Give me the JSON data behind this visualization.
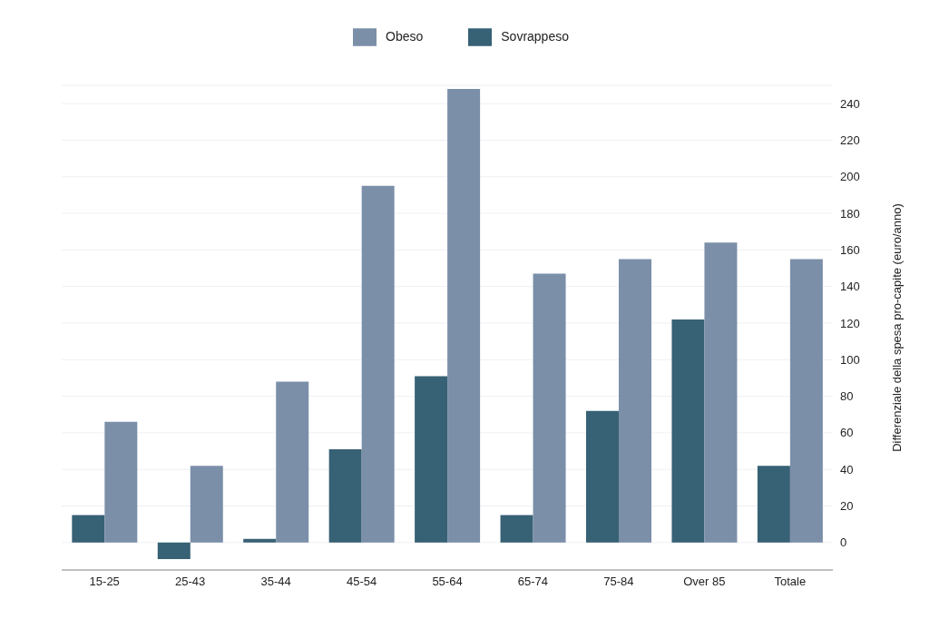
{
  "chart_data": {
    "type": "bar",
    "ylabel": "Differenziale della spesa  pro-capite (euro/anno)",
    "categories": [
      "15-25",
      "25-43",
      "35-44",
      "45-54",
      "55-64",
      "65-74",
      "75-84",
      "Over 85",
      "Totale"
    ],
    "series": [
      {
        "name": "Sovrappeso",
        "color": "#376174",
        "values": [
          15,
          -9,
          2,
          51,
          91,
          15,
          72,
          122,
          42
        ]
      },
      {
        "name": "Obeso",
        "color": "#7b8fa9",
        "values": [
          66,
          42,
          88,
          195,
          248,
          147,
          155,
          164,
          155
        ]
      }
    ],
    "ylim": [
      -15,
      250
    ],
    "yticks": [
      0,
      20,
      40,
      60,
      80,
      100,
      120,
      140,
      160,
      180,
      200,
      220,
      240
    ],
    "grid": "y",
    "legend": "top"
  }
}
